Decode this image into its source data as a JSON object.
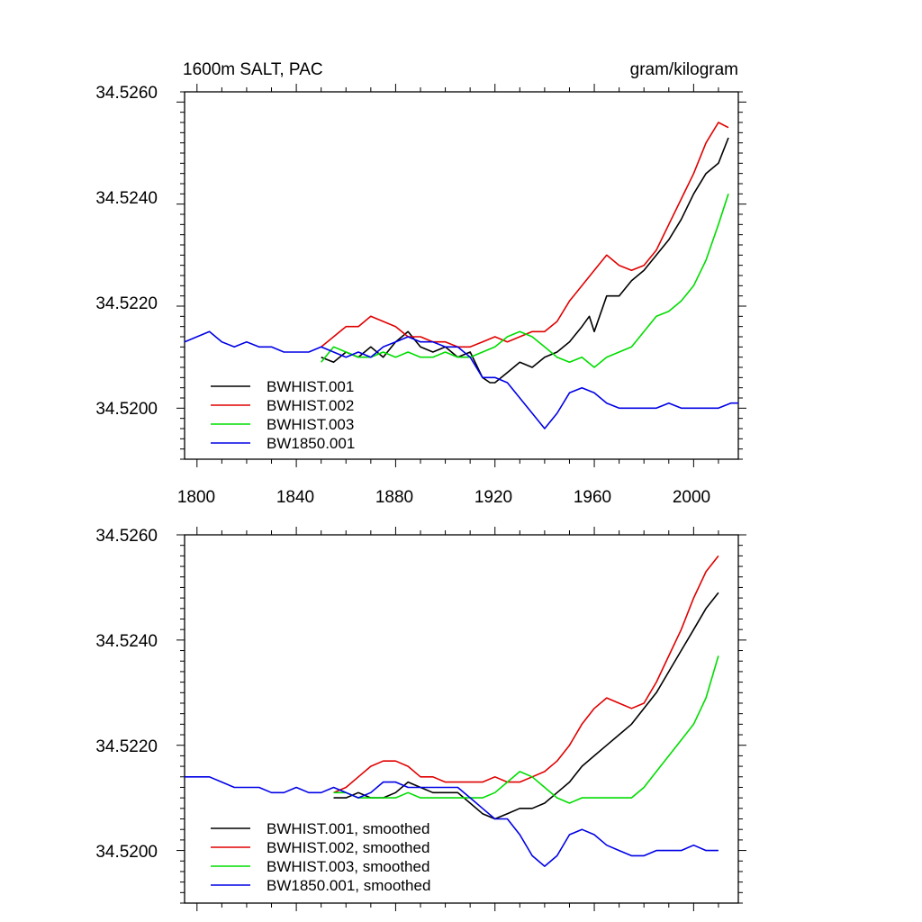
{
  "chart_data": [
    {
      "type": "line",
      "title": "1600m SALT, PAC",
      "units": "gram/kilogram",
      "xlim": [
        1795,
        2018
      ],
      "ylim": [
        34.519,
        34.5262
      ],
      "x_ticks": [
        "1800",
        "1840",
        "1880",
        "1920",
        "1960",
        "2000"
      ],
      "y_ticks": [
        "34.5260",
        "34.5240",
        "34.5220",
        "34.5200"
      ],
      "legend": [
        "BWHIST.001",
        "BWHIST.002",
        "BWHIST.003",
        "BW1850.001"
      ],
      "colors": [
        "#000000",
        "#e00000",
        "#00dd00",
        "#0000e6"
      ],
      "series": [
        {
          "name": "BWHIST.001",
          "x": [
            1850,
            1855,
            1860,
            1865,
            1870,
            1875,
            1880,
            1885,
            1890,
            1895,
            1900,
            1905,
            1910,
            1915,
            1918,
            1920,
            1925,
            1930,
            1935,
            1940,
            1945,
            1950,
            1955,
            1958,
            1960,
            1965,
            1970,
            1975,
            1980,
            1985,
            1990,
            1995,
            2000,
            2005,
            2010,
            2014
          ],
          "y": [
            34.521,
            34.5209,
            34.5211,
            34.521,
            34.5212,
            34.521,
            34.5213,
            34.5215,
            34.5212,
            34.5211,
            34.5212,
            34.521,
            34.5211,
            34.5206,
            34.5205,
            34.5205,
            34.5207,
            34.5209,
            34.5208,
            34.521,
            34.5211,
            34.5213,
            34.5216,
            34.5218,
            34.5215,
            34.5222,
            34.5222,
            34.5225,
            34.5227,
            34.523,
            34.5233,
            34.5237,
            34.5242,
            34.5246,
            34.5248,
            34.5253
          ]
        },
        {
          "name": "BWHIST.002",
          "x": [
            1850,
            1855,
            1860,
            1865,
            1870,
            1875,
            1880,
            1885,
            1890,
            1895,
            1900,
            1905,
            1910,
            1915,
            1920,
            1925,
            1930,
            1935,
            1940,
            1945,
            1950,
            1955,
            1960,
            1965,
            1970,
            1975,
            1980,
            1985,
            1990,
            1995,
            2000,
            2005,
            2010,
            2014
          ],
          "y": [
            34.5212,
            34.5214,
            34.5216,
            34.5216,
            34.5218,
            34.5217,
            34.5216,
            34.5214,
            34.5214,
            34.5213,
            34.5213,
            34.5212,
            34.5212,
            34.5213,
            34.5214,
            34.5213,
            34.5214,
            34.5215,
            34.5215,
            34.5217,
            34.5221,
            34.5224,
            34.5227,
            34.523,
            34.5228,
            34.5227,
            34.5228,
            34.5231,
            34.5236,
            34.5241,
            34.5246,
            34.5252,
            34.5256,
            34.5255
          ]
        },
        {
          "name": "BWHIST.003",
          "x": [
            1850,
            1855,
            1860,
            1865,
            1870,
            1875,
            1880,
            1885,
            1890,
            1895,
            1900,
            1905,
            1910,
            1915,
            1920,
            1925,
            1930,
            1935,
            1940,
            1945,
            1950,
            1955,
            1960,
            1965,
            1970,
            1975,
            1980,
            1985,
            1990,
            1995,
            2000,
            2005,
            2010,
            2014
          ],
          "y": [
            34.5209,
            34.5212,
            34.5211,
            34.521,
            34.521,
            34.5211,
            34.521,
            34.5211,
            34.521,
            34.521,
            34.5211,
            34.521,
            34.521,
            34.5211,
            34.5212,
            34.5214,
            34.5215,
            34.5214,
            34.5212,
            34.521,
            34.5209,
            34.521,
            34.5208,
            34.521,
            34.5211,
            34.5212,
            34.5215,
            34.5218,
            34.5219,
            34.5221,
            34.5224,
            34.5229,
            34.5236,
            34.5242
          ]
        },
        {
          "name": "BW1850.001",
          "x": [
            1795,
            1800,
            1805,
            1810,
            1815,
            1820,
            1825,
            1830,
            1835,
            1840,
            1845,
            1850,
            1855,
            1860,
            1865,
            1870,
            1875,
            1880,
            1885,
            1890,
            1895,
            1900,
            1905,
            1910,
            1915,
            1920,
            1925,
            1930,
            1935,
            1940,
            1945,
            1950,
            1955,
            1960,
            1965,
            1970,
            1975,
            1980,
            1985,
            1990,
            1995,
            2000,
            2005,
            2010,
            2015,
            2018
          ],
          "y": [
            34.5213,
            34.5214,
            34.5215,
            34.5213,
            34.5212,
            34.5213,
            34.5212,
            34.5212,
            34.5211,
            34.5211,
            34.5211,
            34.5212,
            34.5211,
            34.521,
            34.5211,
            34.521,
            34.5212,
            34.5213,
            34.5214,
            34.5213,
            34.5213,
            34.5212,
            34.5212,
            34.521,
            34.5206,
            34.5206,
            34.5205,
            34.5202,
            34.5199,
            34.5196,
            34.5199,
            34.5203,
            34.5204,
            34.5203,
            34.5201,
            34.52,
            34.52,
            34.52,
            34.52,
            34.5201,
            34.52,
            34.52,
            34.52,
            34.52,
            34.5201,
            34.5201
          ]
        }
      ]
    },
    {
      "type": "line",
      "title": "",
      "xlim": [
        1795,
        2018
      ],
      "ylim": [
        34.519,
        34.526
      ],
      "x_ticks": [],
      "y_ticks": [
        "34.5260",
        "34.5240",
        "34.5220",
        "34.5200"
      ],
      "legend": [
        "BWHIST.001, smoothed",
        "BWHIST.002, smoothed",
        "BWHIST.003, smoothed",
        "BW1850.001, smoothed"
      ],
      "colors": [
        "#000000",
        "#e00000",
        "#00dd00",
        "#0000e6"
      ],
      "series": [
        {
          "name": "BWHIST.001, smoothed",
          "x": [
            1855,
            1860,
            1865,
            1870,
            1875,
            1880,
            1885,
            1890,
            1895,
            1900,
            1905,
            1910,
            1915,
            1920,
            1925,
            1930,
            1935,
            1940,
            1945,
            1950,
            1955,
            1960,
            1965,
            1970,
            1975,
            1980,
            1985,
            1990,
            1995,
            2000,
            2005,
            2010
          ],
          "y": [
            34.521,
            34.521,
            34.5211,
            34.521,
            34.521,
            34.5211,
            34.5213,
            34.5212,
            34.5211,
            34.5211,
            34.5211,
            34.5209,
            34.5207,
            34.5206,
            34.5207,
            34.5208,
            34.5208,
            34.5209,
            34.5211,
            34.5213,
            34.5216,
            34.5218,
            34.522,
            34.5222,
            34.5224,
            34.5227,
            34.523,
            34.5234,
            34.5238,
            34.5242,
            34.5246,
            34.5249
          ]
        },
        {
          "name": "BWHIST.002, smoothed",
          "x": [
            1855,
            1860,
            1865,
            1870,
            1875,
            1880,
            1885,
            1890,
            1895,
            1900,
            1905,
            1910,
            1915,
            1920,
            1925,
            1930,
            1935,
            1940,
            1945,
            1950,
            1955,
            1960,
            1965,
            1970,
            1975,
            1980,
            1985,
            1990,
            1995,
            2000,
            2005,
            2010
          ],
          "y": [
            34.5211,
            34.5212,
            34.5214,
            34.5216,
            34.5217,
            34.5217,
            34.5216,
            34.5214,
            34.5214,
            34.5213,
            34.5213,
            34.5213,
            34.5213,
            34.5214,
            34.5213,
            34.5213,
            34.5214,
            34.5215,
            34.5217,
            34.522,
            34.5224,
            34.5227,
            34.5229,
            34.5228,
            34.5227,
            34.5228,
            34.5232,
            34.5237,
            34.5242,
            34.5248,
            34.5253,
            34.5256
          ]
        },
        {
          "name": "BWHIST.003, smoothed",
          "x": [
            1855,
            1860,
            1865,
            1870,
            1875,
            1880,
            1885,
            1890,
            1895,
            1900,
            1905,
            1910,
            1915,
            1920,
            1925,
            1930,
            1935,
            1940,
            1945,
            1950,
            1955,
            1960,
            1965,
            1970,
            1975,
            1980,
            1985,
            1990,
            1995,
            2000,
            2005,
            2010
          ],
          "y": [
            34.5211,
            34.5211,
            34.521,
            34.521,
            34.521,
            34.521,
            34.5211,
            34.521,
            34.521,
            34.521,
            34.521,
            34.521,
            34.521,
            34.5211,
            34.5213,
            34.5215,
            34.5214,
            34.5212,
            34.521,
            34.5209,
            34.521,
            34.521,
            34.521,
            34.521,
            34.521,
            34.5212,
            34.5215,
            34.5218,
            34.5221,
            34.5224,
            34.5229,
            34.5237
          ]
        },
        {
          "name": "BW1850.001, smoothed",
          "x": [
            1795,
            1800,
            1805,
            1810,
            1815,
            1820,
            1825,
            1830,
            1835,
            1840,
            1845,
            1850,
            1855,
            1860,
            1865,
            1870,
            1875,
            1880,
            1885,
            1890,
            1895,
            1900,
            1905,
            1910,
            1915,
            1920,
            1925,
            1930,
            1935,
            1940,
            1945,
            1950,
            1955,
            1960,
            1965,
            1970,
            1975,
            1980,
            1985,
            1990,
            1995,
            2000,
            2005,
            2010
          ],
          "y": [
            34.5214,
            34.5214,
            34.5214,
            34.5213,
            34.5212,
            34.5212,
            34.5212,
            34.5211,
            34.5211,
            34.5212,
            34.5211,
            34.5211,
            34.5212,
            34.5211,
            34.521,
            34.5211,
            34.5213,
            34.5213,
            34.5212,
            34.5212,
            34.5212,
            34.5212,
            34.5212,
            34.521,
            34.5208,
            34.5206,
            34.5206,
            34.5203,
            34.5199,
            34.5197,
            34.5199,
            34.5203,
            34.5204,
            34.5203,
            34.5201,
            34.52,
            34.5199,
            34.5199,
            34.52,
            34.52,
            34.52,
            34.5201,
            34.52,
            34.52
          ]
        }
      ]
    }
  ]
}
